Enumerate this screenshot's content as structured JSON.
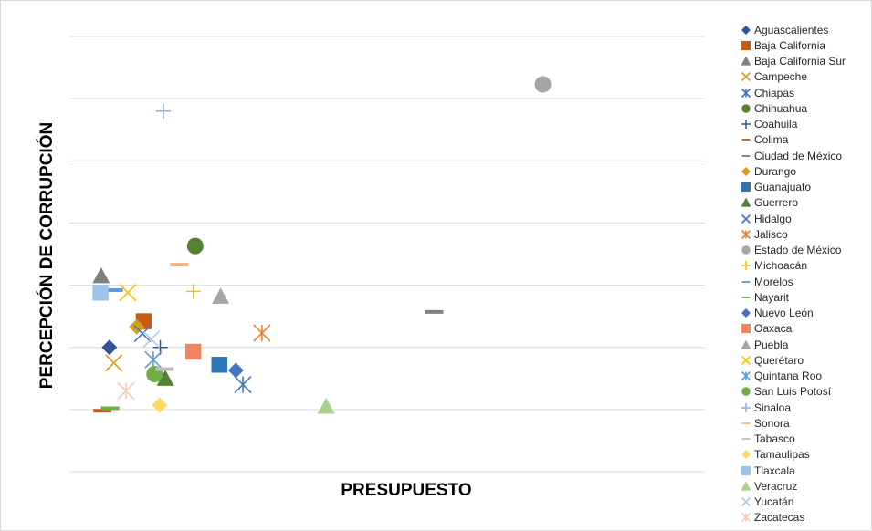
{
  "chart_data": {
    "type": "scatter",
    "xlabel": "PRESUPUESTO",
    "ylabel": "PERCEPCIÓN DE CORRUPCIÓN",
    "xlim": [
      0,
      100
    ],
    "ylim": [
      0,
      7
    ],
    "gridlines": "horizontal",
    "legend_position": "right",
    "series": [
      {
        "name": "Aguascalientes",
        "marker": "diamond",
        "color": "#2f5597",
        "x": 6.3,
        "y": 2.0
      },
      {
        "name": "Baja California",
        "marker": "square",
        "color": "#c55a11",
        "x": 11.7,
        "y": 2.42
      },
      {
        "name": "Baja California Sur",
        "marker": "triangle",
        "color": "#7f7f7f",
        "x": 5.0,
        "y": 3.15
      },
      {
        "name": "Campeche",
        "marker": "x",
        "color": "#d4a017",
        "x": 7.0,
        "y": 1.75
      },
      {
        "name": "Chiapas",
        "marker": "star",
        "color": "#4472c4",
        "x": 27.3,
        "y": 1.4
      },
      {
        "name": "Chihuahua",
        "marker": "circle",
        "color": "#548235",
        "x": 19.8,
        "y": 3.63
      },
      {
        "name": "Coahuila",
        "marker": "plus",
        "color": "#2f5597",
        "x": 14.3,
        "y": 2.0
      },
      {
        "name": "Colima",
        "marker": "dash",
        "color": "#c55a11",
        "x": 5.2,
        "y": 0.98
      },
      {
        "name": "Ciudad de México",
        "marker": "dash",
        "color": "#808080",
        "x": 57.4,
        "y": 2.57
      },
      {
        "name": "Durango",
        "marker": "diamond",
        "color": "#d4a017",
        "x": 10.6,
        "y": 2.33
      },
      {
        "name": "Guanajuato",
        "marker": "square",
        "color": "#2e75b6",
        "x": 23.6,
        "y": 1.72
      },
      {
        "name": "Guerrero",
        "marker": "triangle",
        "color": "#548235",
        "x": 15.1,
        "y": 1.5
      },
      {
        "name": "Hidalgo",
        "marker": "x",
        "color": "#4472c4",
        "x": 11.5,
        "y": 2.22
      },
      {
        "name": "Jalisco",
        "marker": "star",
        "color": "#ed7d31",
        "x": 30.3,
        "y": 2.23
      },
      {
        "name": "Estado de México",
        "marker": "circle",
        "color": "#a5a5a5",
        "x": 74.5,
        "y": 6.23
      },
      {
        "name": "Michoacán",
        "marker": "plus",
        "color": "#ffc000",
        "x": 19.5,
        "y": 2.9
      },
      {
        "name": "Morelos",
        "marker": "dash",
        "color": "#5b9bd5",
        "x": 7.0,
        "y": 2.92
      },
      {
        "name": "Nayarit",
        "marker": "dash",
        "color": "#70ad47",
        "x": 6.4,
        "y": 1.02
      },
      {
        "name": "Nuevo León",
        "marker": "diamond",
        "color": "#4472c4",
        "x": 26.2,
        "y": 1.63
      },
      {
        "name": "Oaxaca",
        "marker": "square",
        "color": "#f4845f",
        "x": 19.5,
        "y": 1.93
      },
      {
        "name": "Puebla",
        "marker": "triangle",
        "color": "#a5a5a5",
        "x": 23.8,
        "y": 2.82
      },
      {
        "name": "Querétaro",
        "marker": "x",
        "color": "#ffc000",
        "x": 9.2,
        "y": 2.88
      },
      {
        "name": "Quintana Roo",
        "marker": "star",
        "color": "#5b9bd5",
        "x": 13.2,
        "y": 1.8
      },
      {
        "name": "San Luis Potosí",
        "marker": "circle",
        "color": "#70ad47",
        "x": 13.4,
        "y": 1.57
      },
      {
        "name": "Sinaloa",
        "marker": "plus",
        "color": "#8faadc",
        "x": 14.8,
        "y": 5.8
      },
      {
        "name": "Sonora",
        "marker": "dash",
        "color": "#f4b183",
        "x": 17.3,
        "y": 3.33
      },
      {
        "name": "Tabasco",
        "marker": "dash",
        "color": "#bfbfbf",
        "x": 15.0,
        "y": 1.65
      },
      {
        "name": "Tamaulipas",
        "marker": "diamond",
        "color": "#ffd966",
        "x": 14.2,
        "y": 1.07
      },
      {
        "name": "Tlaxcala",
        "marker": "square",
        "color": "#9dc3e6",
        "x": 4.9,
        "y": 2.88
      },
      {
        "name": "Veracruz",
        "marker": "triangle",
        "color": "#a9d18e",
        "x": 40.4,
        "y": 1.05
      },
      {
        "name": "Yucatán",
        "marker": "x",
        "color": "#b4c7e7",
        "x": 12.9,
        "y": 2.13
      },
      {
        "name": "Zacatecas",
        "marker": "star",
        "color": "#f8cbad",
        "x": 8.9,
        "y": 1.3
      }
    ]
  }
}
